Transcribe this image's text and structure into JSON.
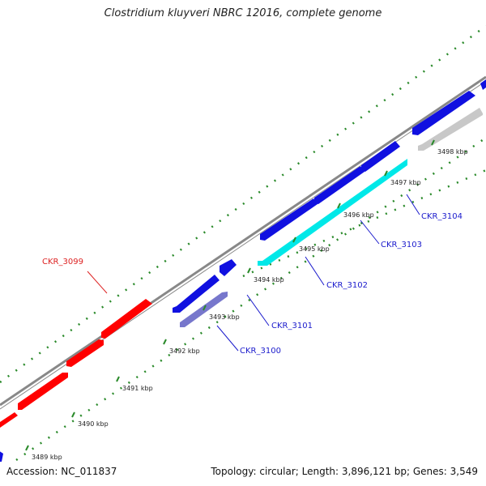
{
  "header": {
    "title": "Clostridium kluyveri NBRC 12016, complete genome"
  },
  "footer": {
    "accession": "Accession: NC_011837",
    "stats": "Topology: circular; Length: 3,896,121 bp; Genes: 3,549"
  },
  "colors": {
    "backbone": "#888888",
    "gc_dots": "#2a8a2a",
    "label_forward": "#dd2222",
    "label_reverse": "#1a1acc"
  },
  "ticks": [
    {
      "label": "3489 kbp"
    },
    {
      "label": "3490 kbp"
    },
    {
      "label": "3491 kbp"
    },
    {
      "label": "3492 kbp"
    },
    {
      "label": "3493 kbp"
    },
    {
      "label": "3494 kbp"
    },
    {
      "label": "3495 kbp"
    },
    {
      "label": "3496 kbp"
    },
    {
      "label": "3497 kbp"
    },
    {
      "label": "3498 kbp"
    }
  ],
  "gene_labels": [
    {
      "name": "CKR_3099",
      "color": "#dd2222"
    },
    {
      "name": "CKR_3100",
      "color": "#1a1acc"
    },
    {
      "name": "CKR_3101",
      "color": "#1a1acc"
    },
    {
      "name": "CKR_3102",
      "color": "#1a1acc"
    },
    {
      "name": "CKR_3103",
      "color": "#1a1acc"
    },
    {
      "name": "CKR_3104",
      "color": "#1a1acc"
    }
  ]
}
